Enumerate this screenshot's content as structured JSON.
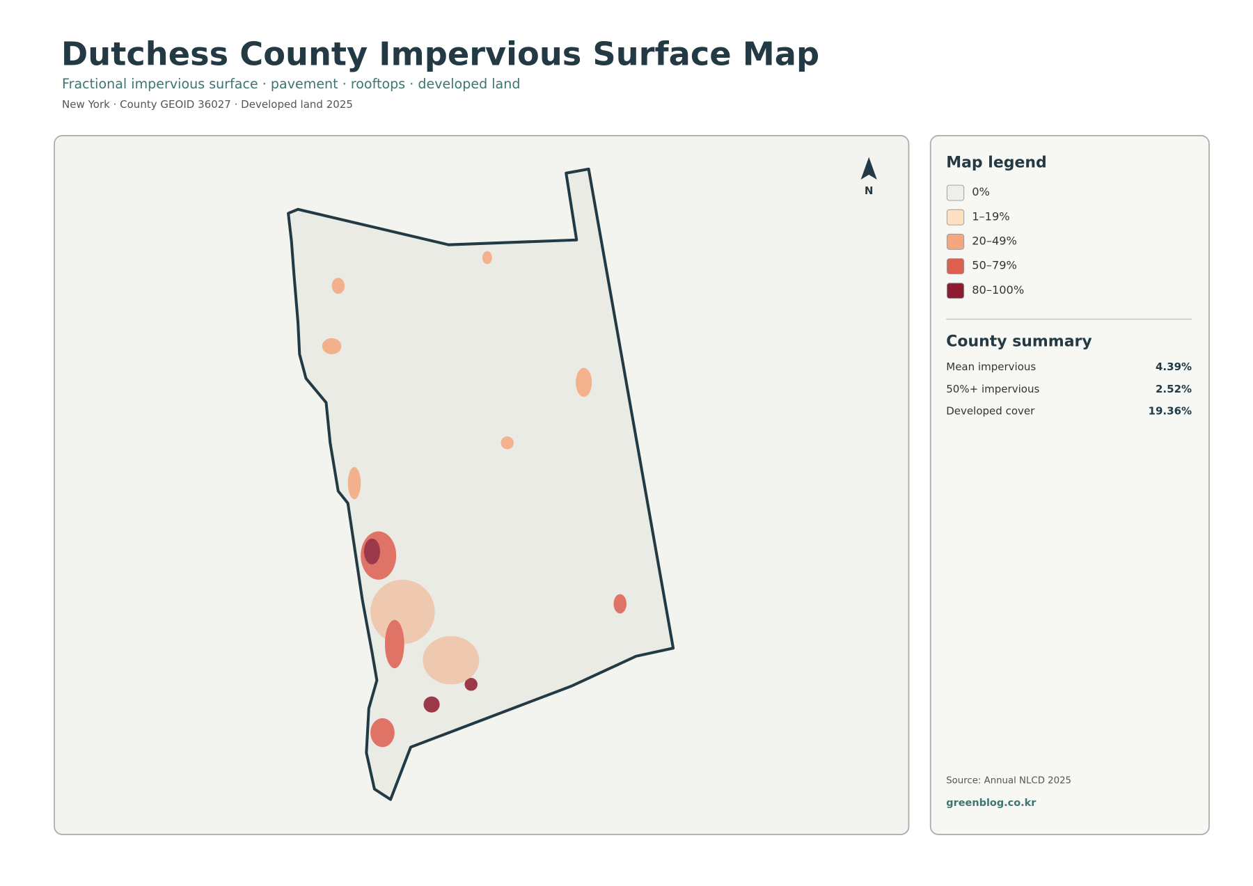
{
  "header": {
    "title": "Dutchess County Impervious Surface Map",
    "subtitle": "Fractional impervious surface · pavement · rooftops · developed land",
    "meta": "New York · County GEOID 36027 · Developed land 2025"
  },
  "map": {
    "north_label": "N"
  },
  "legend": {
    "title": "Map legend",
    "items": [
      {
        "label": "0%",
        "color": "#eeeeea"
      },
      {
        "label": "1–19%",
        "color": "#fde0c0"
      },
      {
        "label": "20–49%",
        "color": "#f4a77c"
      },
      {
        "label": "50–79%",
        "color": "#dd5f4f"
      },
      {
        "label": "80–100%",
        "color": "#8e1b2f"
      }
    ]
  },
  "summary": {
    "title": "County summary",
    "rows": [
      {
        "label": "Mean impervious",
        "value": "4.39%"
      },
      {
        "label": "50%+ impervious",
        "value": "2.52%"
      },
      {
        "label": "Developed cover",
        "value": "19.36%"
      }
    ]
  },
  "footer": {
    "source": "Source: Annual NLCD 2025",
    "site": "greenblog.co.kr"
  }
}
